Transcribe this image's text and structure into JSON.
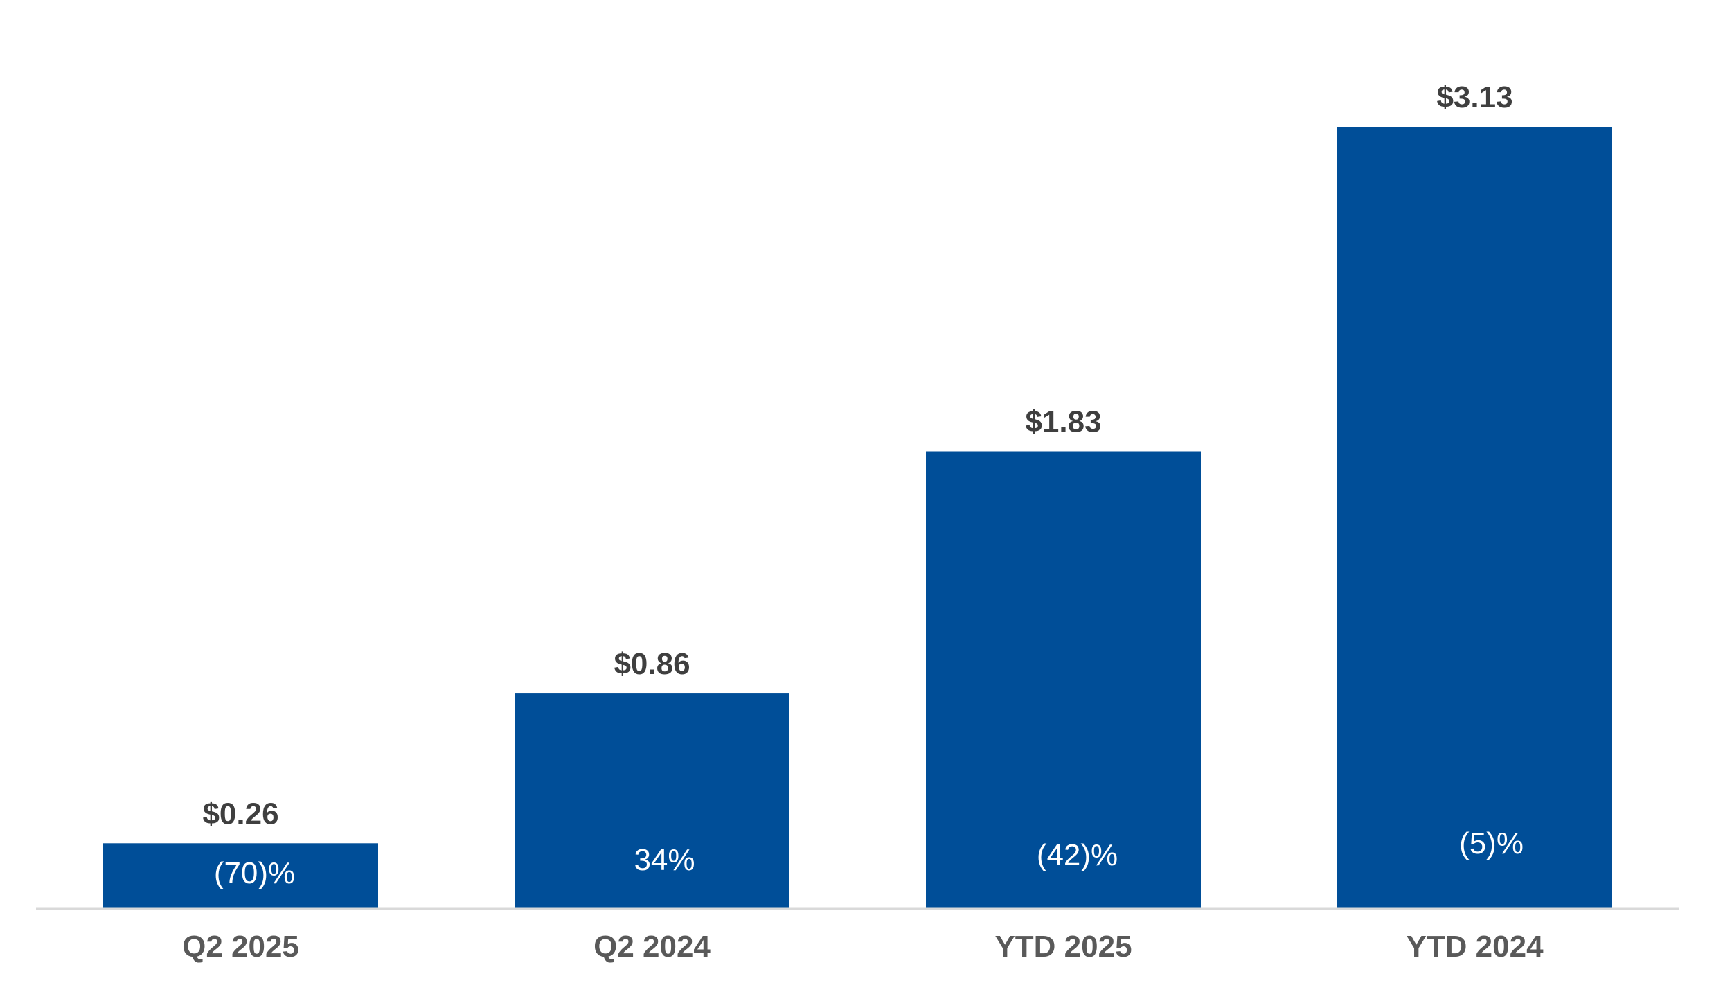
{
  "chart_data": {
    "type": "bar",
    "title": "",
    "xlabel": "",
    "ylabel": "",
    "categories": [
      "Q2 2025",
      "Q2 2024",
      "YTD 2025",
      "YTD 2024"
    ],
    "values": [
      0.26,
      0.86,
      1.83,
      3.13
    ],
    "value_labels": [
      "$0.26",
      "$0.86",
      "$1.83",
      "$3.13"
    ],
    "change_labels": [
      "(70)%",
      "34%",
      "(42)%",
      "(5)%"
    ],
    "ylim": [
      0,
      3.13
    ],
    "grid": false,
    "legend": "none",
    "colors": {
      "bar": "#004E98",
      "value_label": "#3F3F3F",
      "inner_label": "#FFFFFF",
      "category_label": "#595959",
      "axis": "#D9D9D9"
    }
  }
}
